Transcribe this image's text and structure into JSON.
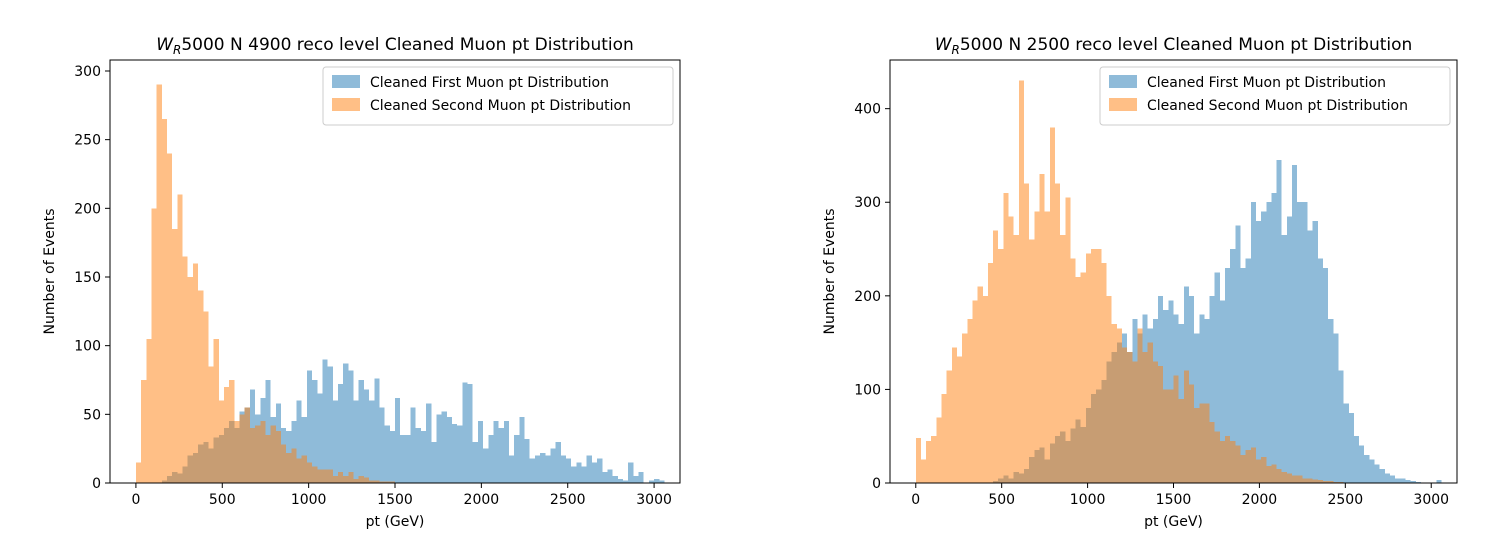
{
  "chart_data": [
    {
      "type": "histogram",
      "title_prefix": "W",
      "title_subscript": "R",
      "title_rest": "5000 N 4900 reco level Cleaned Muon pt Distribution",
      "xlabel": "pt (GeV)",
      "ylabel": "Number of Events",
      "xlim": [
        -150,
        3150
      ],
      "ylim": [
        0,
        308
      ],
      "xticks": [
        0,
        500,
        1000,
        1500,
        2000,
        2500,
        3000
      ],
      "yticks": [
        0,
        50,
        100,
        150,
        200,
        250,
        300
      ],
      "bin_width": 30,
      "x_start": 0,
      "legend_location": "upper right",
      "grid": false,
      "series": [
        {
          "name": "Cleaned First Muon pt Distribution",
          "color": "#1f77b4",
          "opacity": 0.5,
          "values": [
            0,
            0,
            0,
            0,
            0,
            2,
            5,
            8,
            7,
            12,
            20,
            22,
            28,
            30,
            25,
            33,
            35,
            40,
            45,
            40,
            52,
            55,
            68,
            50,
            62,
            75,
            48,
            58,
            40,
            38,
            45,
            60,
            48,
            82,
            75,
            65,
            90,
            85,
            60,
            72,
            87,
            82,
            60,
            75,
            68,
            60,
            76,
            55,
            42,
            38,
            62,
            35,
            35,
            55,
            40,
            38,
            58,
            30,
            50,
            52,
            48,
            43,
            42,
            73,
            72,
            30,
            45,
            25,
            35,
            45,
            40,
            45,
            20,
            35,
            48,
            32,
            18,
            20,
            22,
            20,
            25,
            30,
            20,
            18,
            12,
            15,
            12,
            20,
            15,
            18,
            8,
            10,
            5,
            3,
            2,
            15,
            5,
            8,
            0,
            2,
            3,
            2
          ]
        },
        {
          "name": "Cleaned Second Muon pt Distribution",
          "color": "#ff7f0e",
          "opacity": 0.5,
          "values": [
            15,
            75,
            105,
            200,
            290,
            265,
            240,
            185,
            210,
            165,
            150,
            160,
            140,
            125,
            85,
            105,
            60,
            70,
            75,
            45,
            50,
            55,
            40,
            42,
            45,
            35,
            42,
            38,
            28,
            22,
            25,
            18,
            20,
            15,
            12,
            10,
            10,
            10,
            5,
            8,
            5,
            8,
            3,
            5,
            4,
            2,
            2,
            1,
            1,
            1,
            0,
            0,
            0,
            0,
            0,
            0,
            0,
            0,
            0,
            0,
            0,
            0,
            0,
            0,
            0,
            0,
            0,
            0,
            0,
            0,
            0,
            0,
            0,
            0,
            0,
            0,
            0,
            0,
            0,
            0,
            0,
            0,
            0,
            0,
            0,
            0,
            0,
            0,
            0,
            0,
            0,
            0,
            0,
            0,
            0,
            0,
            0,
            0,
            0,
            0,
            0,
            0
          ]
        }
      ]
    },
    {
      "type": "histogram",
      "title_prefix": "W",
      "title_subscript": "R",
      "title_rest": "5000 N 2500 reco level Cleaned Muon pt Distribution",
      "xlabel": "pt (GeV)",
      "ylabel": "Number of Events",
      "xlim": [
        -150,
        3150
      ],
      "ylim": [
        0,
        452
      ],
      "xticks": [
        0,
        500,
        1000,
        1500,
        2000,
        2500,
        3000
      ],
      "yticks": [
        0,
        100,
        200,
        300,
        400
      ],
      "bin_width": 30,
      "x_start": 0,
      "legend_location": "upper right",
      "grid": false,
      "series": [
        {
          "name": "Cleaned First Muon pt Distribution",
          "color": "#1f77b4",
          "opacity": 0.5,
          "values": [
            0,
            0,
            0,
            0,
            0,
            0,
            0,
            0,
            0,
            0,
            0,
            0,
            0,
            0,
            0,
            2,
            5,
            8,
            5,
            12,
            10,
            15,
            28,
            35,
            38,
            25,
            42,
            50,
            55,
            45,
            58,
            68,
            60,
            80,
            95,
            100,
            110,
            130,
            140,
            150,
            160,
            140,
            175,
            160,
            180,
            165,
            175,
            200,
            185,
            195,
            180,
            170,
            210,
            200,
            160,
            180,
            175,
            200,
            225,
            195,
            230,
            250,
            275,
            230,
            240,
            300,
            280,
            290,
            300,
            310,
            345,
            265,
            285,
            340,
            300,
            300,
            270,
            280,
            240,
            230,
            175,
            160,
            120,
            85,
            75,
            50,
            40,
            30,
            25,
            20,
            15,
            10,
            8,
            5,
            5,
            3,
            2,
            1,
            0,
            0,
            0,
            3
          ]
        },
        {
          "name": "Cleaned Second Muon pt Distribution",
          "color": "#ff7f0e",
          "opacity": 0.5,
          "values": [
            48,
            25,
            45,
            50,
            70,
            95,
            120,
            145,
            135,
            160,
            175,
            195,
            210,
            200,
            235,
            270,
            250,
            310,
            285,
            265,
            430,
            320,
            260,
            290,
            330,
            290,
            380,
            320,
            265,
            305,
            240,
            220,
            225,
            245,
            250,
            250,
            235,
            200,
            170,
            165,
            145,
            140,
            130,
            165,
            140,
            150,
            130,
            125,
            100,
            100,
            115,
            90,
            120,
            105,
            80,
            85,
            85,
            65,
            55,
            45,
            50,
            45,
            40,
            30,
            35,
            38,
            25,
            28,
            18,
            20,
            15,
            12,
            10,
            8,
            8,
            5,
            5,
            4,
            3,
            2,
            2,
            1,
            1,
            0,
            0,
            0,
            0,
            0,
            0,
            0,
            0,
            0,
            0,
            0,
            0,
            0,
            0,
            0,
            0,
            0,
            0,
            0
          ]
        }
      ]
    }
  ]
}
